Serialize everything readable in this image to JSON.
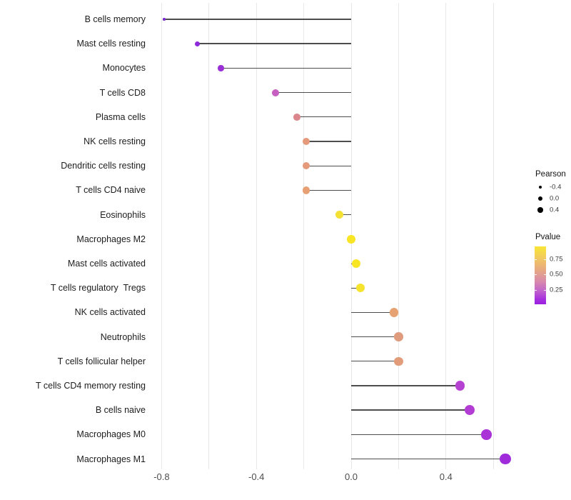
{
  "chart_data": {
    "type": "scatter",
    "variant": "lollipop",
    "orientation": "horizontal",
    "title": "",
    "xlabel": "",
    "ylabel": "",
    "grid": "vertical-only",
    "background": "#ffffff",
    "baseline_x": 0.0,
    "xlim": [
      -0.87,
      0.73
    ],
    "x_gridlines": [
      -0.8,
      -0.6,
      -0.4,
      -0.2,
      0.0,
      0.2,
      0.4,
      0.6
    ],
    "x_ticks": [
      -0.8,
      -0.4,
      0.0,
      0.4
    ],
    "x_tick_labels": [
      "-0.8",
      "-0.4",
      "0.0",
      "0.4"
    ],
    "categories": [
      "B cells memory",
      "Mast cells resting",
      "Monocytes",
      "T cells CD8",
      "Plasma cells",
      "NK cells resting",
      "Dendritic cells resting",
      "T cells CD4 naive",
      "Eosinophils",
      "Macrophages M2",
      "Mast cells activated",
      "T cells regulatory  Tregs",
      "NK cells activated",
      "Neutrophils",
      "T cells follicular helper",
      "T cells CD4 memory resting",
      "B cells naive",
      "Macrophages M0",
      "Macrophages M1"
    ],
    "series": [
      {
        "name": "Pearson",
        "values": [
          -0.79,
          -0.65,
          -0.55,
          -0.32,
          -0.23,
          -0.19,
          -0.19,
          -0.19,
          -0.05,
          0.0,
          0.02,
          0.04,
          0.18,
          0.2,
          0.2,
          0.46,
          0.5,
          0.57,
          0.65
        ]
      }
    ],
    "pvalue_approx": [
      0.02,
      0.05,
      0.08,
      0.3,
      0.48,
      0.55,
      0.55,
      0.57,
      0.85,
      0.9,
      0.9,
      0.87,
      0.57,
      0.5,
      0.52,
      0.17,
      0.14,
      0.09,
      0.06
    ],
    "point_colors": [
      "#7b2bcf",
      "#8d2ad9",
      "#9a2fd7",
      "#c75fc0",
      "#db868c",
      "#e59b7b",
      "#e59b7b",
      "#e6a073",
      "#f4e133",
      "#f8e626",
      "#f8e626",
      "#f5e32e",
      "#e7a271",
      "#df9b7e",
      "#e29c79",
      "#b542d1",
      "#b23cd4",
      "#aa33d8",
      "#a02bdb"
    ],
    "point_radius_px": [
      1.8,
      3.7,
      4.2,
      5.0,
      4.9,
      5.1,
      5.1,
      5.2,
      5.7,
      5.8,
      6.0,
      6.0,
      6.2,
      6.3,
      6.3,
      6.6,
      7.0,
      7.3,
      7.8
    ],
    "size_legend": {
      "title": "Pearson",
      "entries": [
        {
          "label": "-0.4",
          "r": 2.3
        },
        {
          "label": "0.0",
          "r": 3.0
        },
        {
          "label": "0.4",
          "r": 3.7
        }
      ]
    },
    "color_legend": {
      "title": "Pvalue",
      "domain_top": 0.96,
      "domain_bottom": 0.01,
      "tick_values": [
        0.75,
        0.5,
        0.25
      ],
      "tick_labels": [
        "0.75",
        "0.50",
        "0.25"
      ],
      "gradient_stops": [
        {
          "color": "#f8e636",
          "pos": 0
        },
        {
          "color": "#f2c95f",
          "pos": 20
        },
        {
          "color": "#e7a980",
          "pos": 40
        },
        {
          "color": "#d98bab",
          "pos": 60
        },
        {
          "color": "#c266cb",
          "pos": 76
        },
        {
          "color": "#a52ede",
          "pos": 92
        },
        {
          "color": "#9b1fe0",
          "pos": 100
        }
      ]
    }
  }
}
